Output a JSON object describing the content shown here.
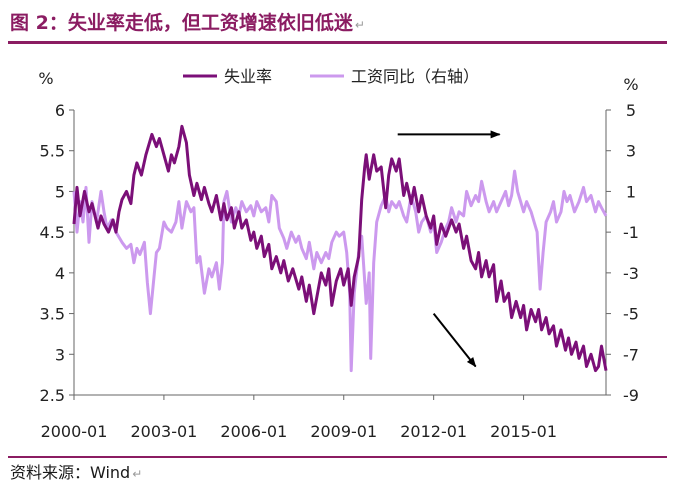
{
  "figure": {
    "title": "图 2：失业率走低，但工资增速依旧低迷",
    "title_mark": "↵",
    "source": "资料来源：Wind",
    "source_mark": "↵"
  },
  "colors": {
    "title": "#8b1c62",
    "unemployment": "#7b0f78",
    "wage": "#cc99ee",
    "arrow": "#000000",
    "axis": "#666666"
  },
  "chart_data": {
    "type": "line",
    "title": "失业率走低，但工资增速依旧低迷",
    "legend": {
      "position": "top-center"
    },
    "grid": false,
    "x_ticks": [
      "2000-01",
      "2003-01",
      "2006-01",
      "2009-01",
      "2012-01",
      "2015-01"
    ],
    "x_range": [
      2000.0,
      2017.75
    ],
    "left_axis": {
      "unit": "%",
      "range": [
        2.5,
        6
      ],
      "ticks": [
        "2.5",
        "3",
        "3.5",
        "4",
        "4.5",
        "5",
        "5.5",
        "6"
      ]
    },
    "right_axis": {
      "unit": "%",
      "range": [
        -9,
        5
      ],
      "ticks": [
        "-9",
        "-7",
        "-5",
        "-3",
        "-1",
        "1",
        "3",
        "5"
      ]
    },
    "series": [
      {
        "name": "失业率",
        "axis": "left",
        "points": [
          [
            2000.0,
            4.6
          ],
          [
            2000.1,
            5.05
          ],
          [
            2000.2,
            4.7
          ],
          [
            2000.35,
            5.0
          ],
          [
            2000.5,
            4.75
          ],
          [
            2000.6,
            4.85
          ],
          [
            2000.8,
            4.55
          ],
          [
            2000.9,
            4.7
          ],
          [
            2001.0,
            4.6
          ],
          [
            2001.15,
            4.5
          ],
          [
            2001.3,
            4.65
          ],
          [
            2001.4,
            4.5
          ],
          [
            2001.5,
            4.75
          ],
          [
            2001.6,
            4.9
          ],
          [
            2001.75,
            5.0
          ],
          [
            2001.9,
            4.85
          ],
          [
            2002.0,
            5.2
          ],
          [
            2002.1,
            5.35
          ],
          [
            2002.25,
            5.2
          ],
          [
            2002.4,
            5.45
          ],
          [
            2002.6,
            5.7
          ],
          [
            2002.75,
            5.55
          ],
          [
            2002.85,
            5.65
          ],
          [
            2003.0,
            5.45
          ],
          [
            2003.15,
            5.25
          ],
          [
            2003.25,
            5.45
          ],
          [
            2003.35,
            5.35
          ],
          [
            2003.5,
            5.55
          ],
          [
            2003.6,
            5.8
          ],
          [
            2003.75,
            5.6
          ],
          [
            2003.85,
            5.2
          ],
          [
            2004.0,
            4.95
          ],
          [
            2004.1,
            5.1
          ],
          [
            2004.25,
            4.9
          ],
          [
            2004.35,
            5.05
          ],
          [
            2004.5,
            4.85
          ],
          [
            2004.6,
            4.75
          ],
          [
            2004.75,
            4.95
          ],
          [
            2004.9,
            4.65
          ],
          [
            2005.0,
            4.85
          ],
          [
            2005.1,
            4.65
          ],
          [
            2005.25,
            4.8
          ],
          [
            2005.35,
            4.55
          ],
          [
            2005.5,
            4.75
          ],
          [
            2005.6,
            4.55
          ],
          [
            2005.75,
            4.65
          ],
          [
            2005.9,
            4.4
          ],
          [
            2006.0,
            4.5
          ],
          [
            2006.1,
            4.3
          ],
          [
            2006.25,
            4.45
          ],
          [
            2006.35,
            4.2
          ],
          [
            2006.5,
            4.35
          ],
          [
            2006.6,
            4.05
          ],
          [
            2006.75,
            4.2
          ],
          [
            2006.9,
            4.0
          ],
          [
            2007.0,
            4.15
          ],
          [
            2007.15,
            3.9
          ],
          [
            2007.3,
            4.05
          ],
          [
            2007.5,
            3.8
          ],
          [
            2007.6,
            3.95
          ],
          [
            2007.75,
            3.65
          ],
          [
            2007.85,
            3.85
          ],
          [
            2008.0,
            3.5
          ],
          [
            2008.1,
            3.7
          ],
          [
            2008.25,
            4.0
          ],
          [
            2008.4,
            3.85
          ],
          [
            2008.5,
            4.05
          ],
          [
            2008.6,
            3.6
          ],
          [
            2008.75,
            3.9
          ],
          [
            2008.9,
            4.05
          ],
          [
            2009.0,
            3.85
          ],
          [
            2009.15,
            4.05
          ],
          [
            2009.25,
            3.6
          ],
          [
            2009.35,
            3.95
          ],
          [
            2009.5,
            4.2
          ],
          [
            2009.6,
            4.9
          ],
          [
            2009.7,
            5.3
          ],
          [
            2009.75,
            5.45
          ],
          [
            2009.85,
            5.15
          ],
          [
            2010.0,
            5.45
          ],
          [
            2010.1,
            5.25
          ],
          [
            2010.25,
            5.3
          ],
          [
            2010.4,
            4.8
          ],
          [
            2010.5,
            5.2
          ],
          [
            2010.6,
            5.4
          ],
          [
            2010.75,
            5.25
          ],
          [
            2010.85,
            5.4
          ],
          [
            2011.0,
            4.95
          ],
          [
            2011.1,
            5.1
          ],
          [
            2011.25,
            4.85
          ],
          [
            2011.35,
            5.05
          ],
          [
            2011.5,
            4.75
          ],
          [
            2011.6,
            4.95
          ],
          [
            2011.75,
            4.7
          ],
          [
            2011.9,
            4.55
          ],
          [
            2012.0,
            4.7
          ],
          [
            2012.1,
            4.35
          ],
          [
            2012.25,
            4.6
          ],
          [
            2012.4,
            4.45
          ],
          [
            2012.6,
            4.65
          ],
          [
            2012.75,
            4.5
          ],
          [
            2012.85,
            4.6
          ],
          [
            2013.0,
            4.3
          ],
          [
            2013.1,
            4.45
          ],
          [
            2013.25,
            4.15
          ],
          [
            2013.4,
            4.05
          ],
          [
            2013.5,
            4.25
          ],
          [
            2013.6,
            3.95
          ],
          [
            2013.75,
            4.15
          ],
          [
            2013.85,
            3.95
          ],
          [
            2014.0,
            4.1
          ],
          [
            2014.1,
            3.65
          ],
          [
            2014.25,
            3.9
          ],
          [
            2014.35,
            3.65
          ],
          [
            2014.5,
            3.75
          ],
          [
            2014.6,
            3.45
          ],
          [
            2014.75,
            3.65
          ],
          [
            2014.9,
            3.45
          ],
          [
            2015.0,
            3.6
          ],
          [
            2015.1,
            3.3
          ],
          [
            2015.25,
            3.55
          ],
          [
            2015.4,
            3.4
          ],
          [
            2015.5,
            3.55
          ],
          [
            2015.6,
            3.3
          ],
          [
            2015.75,
            3.45
          ],
          [
            2015.85,
            3.25
          ],
          [
            2016.0,
            3.35
          ],
          [
            2016.1,
            3.1
          ],
          [
            2016.25,
            3.3
          ],
          [
            2016.4,
            3.05
          ],
          [
            2016.5,
            3.2
          ],
          [
            2016.6,
            3.0
          ],
          [
            2016.75,
            3.15
          ],
          [
            2016.85,
            2.95
          ],
          [
            2017.0,
            3.1
          ],
          [
            2017.1,
            2.85
          ],
          [
            2017.25,
            3.0
          ],
          [
            2017.4,
            2.8
          ],
          [
            2017.5,
            2.85
          ],
          [
            2017.6,
            3.1
          ],
          [
            2017.75,
            2.8
          ]
        ]
      },
      {
        "name": "工资同比（右轴）",
        "axis": "right",
        "points": [
          [
            2000.0,
            1.0
          ],
          [
            2000.1,
            -1.0
          ],
          [
            2000.2,
            0.5
          ],
          [
            2000.3,
            -0.5
          ],
          [
            2000.4,
            1.2
          ],
          [
            2000.5,
            -1.5
          ],
          [
            2000.6,
            0.5
          ],
          [
            2000.75,
            -0.5
          ],
          [
            2000.9,
            1.0
          ],
          [
            2001.0,
            0.0
          ],
          [
            2001.1,
            -0.8
          ],
          [
            2001.25,
            -0.4
          ],
          [
            2001.4,
            -1.0
          ],
          [
            2001.6,
            -1.5
          ],
          [
            2001.75,
            -1.8
          ],
          [
            2001.9,
            -1.6
          ],
          [
            2002.0,
            -2.5
          ],
          [
            2002.1,
            -1.8
          ],
          [
            2002.2,
            -2.1
          ],
          [
            2002.35,
            -1.5
          ],
          [
            2002.45,
            -3.5
          ],
          [
            2002.55,
            -5.0
          ],
          [
            2002.65,
            -3.5
          ],
          [
            2002.75,
            -2.0
          ],
          [
            2002.85,
            -1.8
          ],
          [
            2003.0,
            -0.5
          ],
          [
            2003.1,
            -0.8
          ],
          [
            2003.25,
            -1.0
          ],
          [
            2003.4,
            -0.5
          ],
          [
            2003.5,
            0.5
          ],
          [
            2003.6,
            -0.8
          ],
          [
            2003.75,
            0.5
          ],
          [
            2003.9,
            0.0
          ],
          [
            2004.0,
            0.2
          ],
          [
            2004.1,
            -2.5
          ],
          [
            2004.2,
            -2.2
          ],
          [
            2004.35,
            -4.0
          ],
          [
            2004.5,
            -2.8
          ],
          [
            2004.6,
            -3.2
          ],
          [
            2004.75,
            -2.5
          ],
          [
            2004.85,
            -3.8
          ],
          [
            2004.95,
            -2.5
          ],
          [
            2005.0,
            0.5
          ],
          [
            2005.1,
            1.0
          ],
          [
            2005.25,
            -0.5
          ],
          [
            2005.4,
            0.2
          ],
          [
            2005.5,
            -0.2
          ],
          [
            2005.6,
            0.5
          ],
          [
            2005.75,
            0.0
          ],
          [
            2005.9,
            0.3
          ],
          [
            2006.0,
            -0.2
          ],
          [
            2006.1,
            0.5
          ],
          [
            2006.25,
            0.0
          ],
          [
            2006.4,
            0.2
          ],
          [
            2006.5,
            -0.5
          ],
          [
            2006.6,
            0.8
          ],
          [
            2006.75,
            0.5
          ],
          [
            2006.85,
            -0.8
          ],
          [
            2007.0,
            -1.3
          ],
          [
            2007.1,
            -1.8
          ],
          [
            2007.25,
            -1.0
          ],
          [
            2007.4,
            -1.5
          ],
          [
            2007.5,
            -1.2
          ],
          [
            2007.6,
            -1.8
          ],
          [
            2007.75,
            -2.3
          ],
          [
            2007.85,
            -1.5
          ],
          [
            2008.0,
            -2.8
          ],
          [
            2008.1,
            -2.0
          ],
          [
            2008.25,
            -2.5
          ],
          [
            2008.4,
            -2.0
          ],
          [
            2008.5,
            -2.3
          ],
          [
            2008.6,
            -1.5
          ],
          [
            2008.75,
            -1.0
          ],
          [
            2008.85,
            -1.2
          ],
          [
            2009.0,
            -1.0
          ],
          [
            2009.1,
            -2.0
          ],
          [
            2009.2,
            -4.0
          ],
          [
            2009.25,
            -7.8
          ],
          [
            2009.35,
            -4.0
          ],
          [
            2009.5,
            -2.0
          ],
          [
            2009.6,
            -1.2
          ],
          [
            2009.75,
            -4.5
          ],
          [
            2009.85,
            -3.0
          ],
          [
            2009.9,
            -7.2
          ],
          [
            2010.0,
            -2.5
          ],
          [
            2010.1,
            -0.5
          ],
          [
            2010.25,
            0.3
          ],
          [
            2010.4,
            0.8
          ],
          [
            2010.5,
            0.0
          ],
          [
            2010.6,
            0.5
          ],
          [
            2010.75,
            0.2
          ],
          [
            2010.85,
            0.5
          ],
          [
            2011.0,
            -0.2
          ],
          [
            2011.1,
            -0.5
          ],
          [
            2011.25,
            0.8
          ],
          [
            2011.4,
            0.0
          ],
          [
            2011.5,
            -1.0
          ],
          [
            2011.6,
            -0.5
          ],
          [
            2011.75,
            -0.2
          ],
          [
            2011.9,
            -1.0
          ],
          [
            2012.0,
            -0.5
          ],
          [
            2012.1,
            -2.0
          ],
          [
            2012.25,
            -1.5
          ],
          [
            2012.4,
            -0.8
          ],
          [
            2012.5,
            -0.5
          ],
          [
            2012.6,
            0.2
          ],
          [
            2012.75,
            -0.5
          ],
          [
            2012.85,
            0.0
          ],
          [
            2013.0,
            -0.2
          ],
          [
            2013.1,
            1.0
          ],
          [
            2013.25,
            0.3
          ],
          [
            2013.4,
            0.8
          ],
          [
            2013.5,
            0.5
          ],
          [
            2013.6,
            1.5
          ],
          [
            2013.75,
            0.5
          ],
          [
            2013.85,
            0.0
          ],
          [
            2014.0,
            0.5
          ],
          [
            2014.1,
            0.0
          ],
          [
            2014.25,
            0.5
          ],
          [
            2014.4,
            1.0
          ],
          [
            2014.5,
            0.3
          ],
          [
            2014.6,
            0.8
          ],
          [
            2014.7,
            2.0
          ],
          [
            2014.8,
            1.0
          ],
          [
            2014.9,
            0.5
          ],
          [
            2015.0,
            0.0
          ],
          [
            2015.1,
            0.5
          ],
          [
            2015.25,
            0.0
          ],
          [
            2015.35,
            -0.5
          ],
          [
            2015.45,
            -1.0
          ],
          [
            2015.55,
            -3.8
          ],
          [
            2015.65,
            -2.0
          ],
          [
            2015.75,
            -0.5
          ],
          [
            2015.9,
            0.0
          ],
          [
            2016.0,
            0.5
          ],
          [
            2016.1,
            -0.5
          ],
          [
            2016.25,
            0.0
          ],
          [
            2016.35,
            1.0
          ],
          [
            2016.45,
            0.5
          ],
          [
            2016.55,
            0.8
          ],
          [
            2016.7,
            0.0
          ],
          [
            2016.85,
            0.5
          ],
          [
            2017.0,
            1.2
          ],
          [
            2017.1,
            0.5
          ],
          [
            2017.25,
            0.8
          ],
          [
            2017.4,
            0.0
          ],
          [
            2017.5,
            0.5
          ],
          [
            2017.6,
            0.2
          ],
          [
            2017.75,
            -0.2
          ]
        ]
      }
    ],
    "annotations": [
      {
        "type": "arrow",
        "label": "wage-trend-arrow",
        "direction": "right",
        "from": [
          2010.8,
          3.8
        ],
        "to": [
          2014.2,
          3.8
        ],
        "axis": "right"
      },
      {
        "type": "arrow",
        "label": "unemployment-trend-arrow",
        "direction": "down-right",
        "from": [
          2012.0,
          -5.0
        ],
        "to": [
          2013.4,
          -7.6
        ],
        "axis": "right"
      }
    ]
  }
}
